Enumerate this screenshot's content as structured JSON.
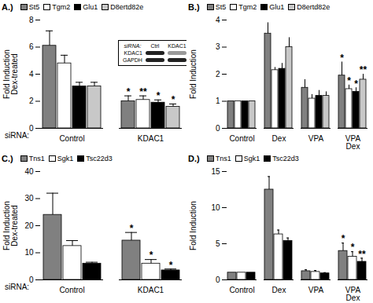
{
  "chart_data": [
    {
      "type": "bar",
      "title": "A.)",
      "y_label": "Fold Induction\nDex-treated",
      "x_label": "siRNA:",
      "categories": [
        "Control",
        "KDAC1"
      ],
      "series": [
        {
          "name": "St5",
          "color": "#808080",
          "values": [
            6.1,
            2.0
          ],
          "errors": [
            1.1,
            0.4
          ],
          "annotations": [
            null,
            "*"
          ]
        },
        {
          "name": "Tgm2",
          "color": "#ffffff",
          "values": [
            4.8,
            2.1
          ],
          "errors": [
            0.6,
            0.3
          ],
          "annotations": [
            null,
            "**"
          ]
        },
        {
          "name": "Glu1",
          "color": "#000000",
          "values": [
            3.1,
            1.9
          ],
          "errors": [
            0.3,
            0.2
          ],
          "annotations": [
            null,
            "*"
          ]
        },
        {
          "name": "D8ertd82e",
          "color": "#c8c8c8",
          "values": [
            3.1,
            1.6
          ],
          "errors": [
            0.3,
            0.2
          ],
          "annotations": [
            null,
            "*"
          ]
        }
      ],
      "ylim": [
        0,
        8
      ],
      "yticks": [
        0,
        2,
        4,
        6,
        8
      ],
      "inset": {
        "title": "siRNA:",
        "lanes": [
          "Ctrl",
          "KDAC1"
        ],
        "rows": [
          "KDAC1",
          "GAPDH"
        ]
      }
    },
    {
      "type": "bar",
      "title": "B.)",
      "y_label": "Fold Induction",
      "categories": [
        "Control",
        "Dex",
        "VPA",
        "VPA\nDex"
      ],
      "series": [
        {
          "name": "St5",
          "color": "#808080",
          "values": [
            1,
            3.5,
            1.5,
            1.95
          ],
          "errors": [
            null,
            0.4,
            0.3,
            0.5
          ],
          "annotations": [
            null,
            null,
            null,
            "*"
          ]
        },
        {
          "name": "Tgm2",
          "color": "#ffffff",
          "values": [
            1,
            2.15,
            1.1,
            1.45
          ],
          "errors": [
            null,
            0.1,
            0.15,
            0.15
          ],
          "annotations": [
            null,
            null,
            null,
            "*"
          ]
        },
        {
          "name": "Glu1",
          "color": "#000000",
          "values": [
            1,
            2.2,
            1.2,
            1.35
          ],
          "errors": [
            null,
            0.2,
            0.2,
            0.15
          ],
          "annotations": [
            null,
            null,
            null,
            "*"
          ]
        },
        {
          "name": "D8ertd82e",
          "color": "#c8c8c8",
          "values": [
            1,
            3.0,
            1.2,
            1.8
          ],
          "errors": [
            null,
            0.35,
            0.15,
            0.2
          ],
          "annotations": [
            null,
            null,
            null,
            "**"
          ]
        }
      ],
      "ylim": [
        0,
        4
      ],
      "yticks": [
        0,
        1,
        2,
        3,
        4
      ]
    },
    {
      "type": "bar",
      "title": "C.)",
      "y_label": "Fold Induction\nDex-treated",
      "x_label": "siRNA:",
      "categories": [
        "Control",
        "KDAC1"
      ],
      "series": [
        {
          "name": "Tns1",
          "color": "#808080",
          "values": [
            24,
            14.5
          ],
          "errors": [
            8,
            3
          ],
          "annotations": [
            null,
            "*"
          ]
        },
        {
          "name": "Sgk1",
          "color": "#ffffff",
          "values": [
            12.5,
            6
          ],
          "errors": [
            2,
            1.5
          ],
          "annotations": [
            null,
            "*"
          ]
        },
        {
          "name": "Tsc22d3",
          "color": "#000000",
          "values": [
            6,
            3.5
          ],
          "errors": [
            0.5,
            0.5
          ],
          "annotations": [
            null,
            "*"
          ]
        }
      ],
      "ylim": [
        0,
        40
      ],
      "yticks": [
        0,
        10,
        20,
        30,
        40
      ]
    },
    {
      "type": "bar",
      "title": "D.)",
      "y_label": "Fold Induction",
      "categories": [
        "Control",
        "Dex",
        "VPA",
        "VPA\nDex"
      ],
      "series": [
        {
          "name": "Tns1",
          "color": "#808080",
          "values": [
            1,
            12.5,
            1.2,
            4.0
          ],
          "errors": [
            null,
            1.8,
            0.2,
            1.1
          ],
          "annotations": [
            null,
            null,
            null,
            "*"
          ]
        },
        {
          "name": "Sgk1",
          "color": "#ffffff",
          "values": [
            1,
            6.3,
            1.1,
            3.2
          ],
          "errors": [
            null,
            0.6,
            0.2,
            0.7
          ],
          "annotations": [
            null,
            null,
            null,
            "*"
          ]
        },
        {
          "name": "Tsc22d3",
          "color": "#000000",
          "values": [
            1,
            5.4,
            0.9,
            2.5
          ],
          "errors": [
            null,
            0.4,
            0.1,
            0.5
          ],
          "annotations": [
            null,
            null,
            null,
            "**"
          ]
        }
      ],
      "ylim": [
        0,
        15
      ],
      "yticks": [
        0,
        5,
        10,
        15
      ]
    }
  ]
}
